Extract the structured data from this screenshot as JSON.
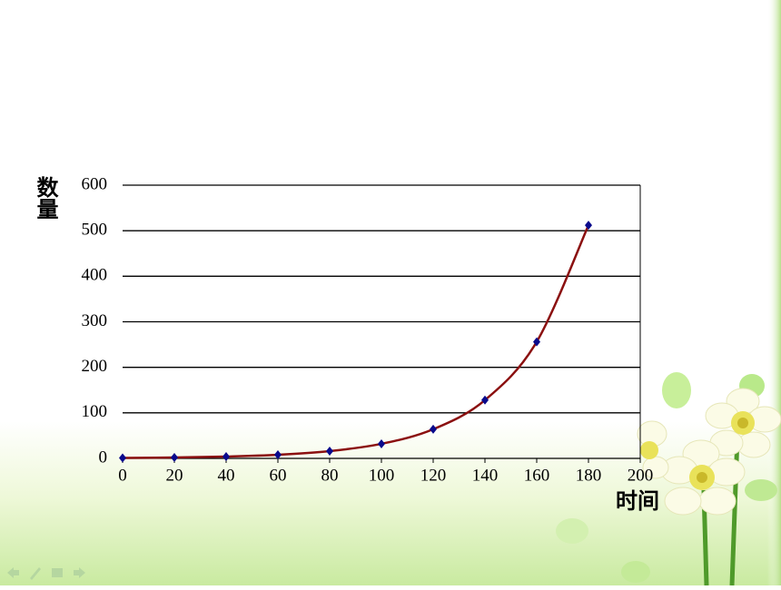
{
  "chart_data": {
    "type": "line",
    "y_label": "数量",
    "x_label": "时间",
    "x": [
      0,
      20,
      40,
      60,
      80,
      100,
      120,
      140,
      160,
      180
    ],
    "values": [
      1,
      2,
      4,
      8,
      16,
      32,
      64,
      128,
      256,
      512
    ],
    "line_color": "#8b1010",
    "marker_color": "#0a0a8c",
    "xlim": [
      0,
      200
    ],
    "xticks": [
      0,
      20,
      40,
      60,
      80,
      100,
      120,
      140,
      160,
      180,
      200
    ],
    "ylim": [
      0,
      600
    ],
    "yticks": [
      0,
      100,
      200,
      300,
      400,
      500,
      600
    ],
    "grid": true,
    "smooth": true
  }
}
